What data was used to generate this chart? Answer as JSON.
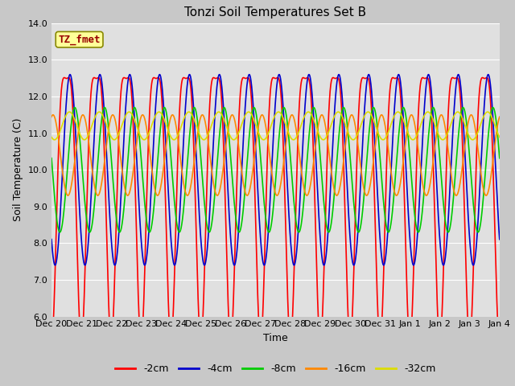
{
  "title": "Tonzi Soil Temperatures Set B",
  "xlabel": "Time",
  "ylabel": "Soil Temperature (C)",
  "ylim": [
    6.0,
    14.0
  ],
  "yticks": [
    6.0,
    7.0,
    8.0,
    9.0,
    10.0,
    11.0,
    12.0,
    13.0,
    14.0
  ],
  "annotation_text": "TZ_fmet",
  "annotation_color": "#990000",
  "annotation_bg": "#ffff99",
  "fig_facecolor": "#c8c8c8",
  "plot_facecolor": "#e0e0e0",
  "series": [
    {
      "label": "-2cm",
      "color": "#ff0000",
      "amplitude": 3.6,
      "mean": 9.9,
      "phase_shift": 0.0,
      "harmonic_amp": 1.0,
      "harmonic_phase": 0.0
    },
    {
      "label": "-4cm",
      "color": "#0000cc",
      "amplitude": 2.6,
      "mean": 10.0,
      "phase_shift": 0.12,
      "harmonic_amp": 0.0,
      "harmonic_phase": 0.0
    },
    {
      "label": "-8cm",
      "color": "#00cc00",
      "amplitude": 1.7,
      "mean": 10.0,
      "phase_shift": 0.28,
      "harmonic_amp": 0.0,
      "harmonic_phase": 0.0
    },
    {
      "label": "-16cm",
      "color": "#ff8800",
      "amplitude": 1.1,
      "mean": 10.4,
      "phase_shift": 0.55,
      "harmonic_amp": 0.0,
      "harmonic_phase": 0.0
    },
    {
      "label": "-32cm",
      "color": "#dddd00",
      "amplitude": 0.38,
      "mean": 11.2,
      "phase_shift": 1.1,
      "harmonic_amp": 0.0,
      "harmonic_phase": 0.0
    }
  ],
  "n_points": 2000,
  "period": 1.0,
  "x_start": 0,
  "x_end": 15,
  "xtick_positions": [
    0,
    1,
    2,
    3,
    4,
    5,
    6,
    7,
    8,
    9,
    10,
    11,
    12,
    13,
    14,
    15
  ],
  "xtick_labels": [
    "Dec 20",
    "Dec 21",
    "Dec 22",
    "Dec 23",
    "Dec 24",
    "Dec 25",
    "Dec 26",
    "Dec 27",
    "Dec 28",
    "Dec 29",
    "Dec 30",
    "Dec 31",
    "Jan 1",
    "Jan 2",
    "Jan 3",
    "Jan 4"
  ],
  "legend_labels": [
    "-2cm",
    "-4cm",
    "-8cm",
    "-16cm",
    "-32cm"
  ],
  "legend_colors": [
    "#ff0000",
    "#0000cc",
    "#00cc00",
    "#ff8800",
    "#dddd00"
  ],
  "linewidth": 1.2,
  "grid_color": "#ffffff",
  "tick_fontsize": 8,
  "label_fontsize": 9,
  "title_fontsize": 11
}
